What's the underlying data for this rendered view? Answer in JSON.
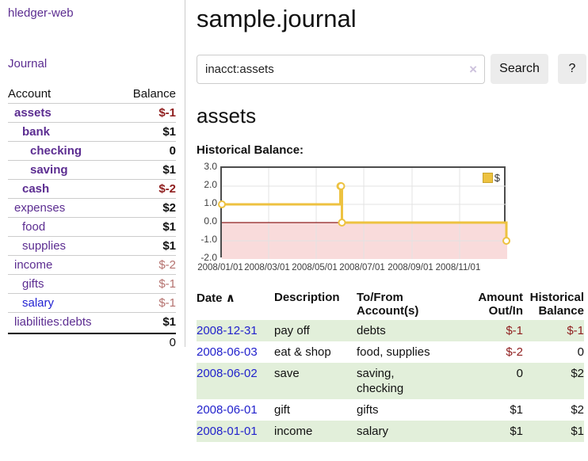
{
  "sidebar": {
    "brand": "hledger-web",
    "journal_link": "Journal",
    "accounts_table": {
      "headers": {
        "account": "Account",
        "balance": "Balance"
      },
      "rows": [
        {
          "name": "assets",
          "balance": "$-1"
        },
        {
          "name": "bank",
          "balance": "$1"
        },
        {
          "name": "checking",
          "balance": "0"
        },
        {
          "name": "saving",
          "balance": "$1"
        },
        {
          "name": "cash",
          "balance": "$-2"
        },
        {
          "name": "expenses",
          "balance": "$2"
        },
        {
          "name": "food",
          "balance": "$1"
        },
        {
          "name": "supplies",
          "balance": "$1"
        },
        {
          "name": "income",
          "balance": "$-2"
        },
        {
          "name": "gifts",
          "balance": "$-1"
        },
        {
          "name": "salary",
          "balance": "$-1"
        },
        {
          "name": "liabilities:debts",
          "balance": "$1"
        }
      ],
      "total": "0"
    }
  },
  "header": {
    "title": "sample.journal"
  },
  "search": {
    "value": "inacct:assets",
    "clear_icon": "×",
    "button_label": "Search",
    "help_label": "?"
  },
  "account_page": {
    "title": "assets",
    "chart_label": "Historical Balance:"
  },
  "chart_data": {
    "type": "line",
    "step": true,
    "title": "Historical Balance",
    "series": [
      {
        "name": "$",
        "color": "#edc240",
        "points": [
          [
            "2008-01-01",
            1
          ],
          [
            "2008-06-01",
            2
          ],
          [
            "2008-06-02",
            2
          ],
          [
            "2008-06-03",
            0
          ],
          [
            "2008-12-31",
            -1
          ]
        ]
      }
    ],
    "x_range": [
      "2008-01-01",
      "2009-01-01"
    ],
    "ylim": [
      -2,
      3
    ],
    "y_ticks": [
      3.0,
      2.0,
      1.0,
      0.0,
      -1.0,
      -2.0
    ],
    "x_ticks": [
      "2008/01/01",
      "2008/03/01",
      "2008/05/01",
      "2008/07/01",
      "2008/09/01",
      "2008/11/01"
    ],
    "legend": {
      "label": "$",
      "position": "top-right"
    },
    "grid": true,
    "negative_region_color": "#f9dbdb",
    "zero_line_color": "#8f1d1d",
    "grid_color": "#e3e3e3"
  },
  "register_table": {
    "headers": {
      "date": "Date",
      "sort_icon": "∧",
      "description": "Description",
      "tofrom": "To/From Account(s)",
      "amount": "Amount Out/In",
      "balance": "Historical Balance"
    },
    "rows": [
      {
        "date": "2008-12-31",
        "description": "pay off",
        "accounts": "debts",
        "amount": "$-1",
        "balance": "$-1"
      },
      {
        "date": "2008-06-03",
        "description": "eat & shop",
        "accounts": "food, supplies",
        "amount": "$-2",
        "balance": "0"
      },
      {
        "date": "2008-06-02",
        "description": "save",
        "accounts": "saving, checking",
        "amount": "0",
        "balance": "$2"
      },
      {
        "date": "2008-06-01",
        "description": "gift",
        "accounts": "gifts",
        "amount": "$1",
        "balance": "$2"
      },
      {
        "date": "2008-01-01",
        "description": "income",
        "accounts": "salary",
        "amount": "$1",
        "balance": "$1"
      }
    ]
  },
  "colors": {
    "link_purple": "#5c2d91",
    "link_blue": "#2222cc",
    "negative_strong": "#8f1e1e",
    "negative_muted": "#b5726f",
    "row_shade_green": "#e2efda",
    "chart_line_yellow": "#edc240"
  }
}
